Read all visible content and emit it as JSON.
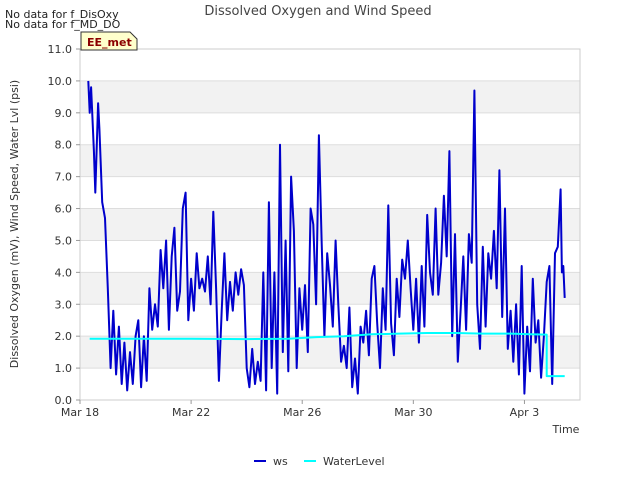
{
  "notices": [
    "No data for f_DisOxy",
    "No data for f_MD_DO"
  ],
  "station_badge": "EE_met",
  "chart_data": {
    "type": "line",
    "title": "Dissolved Oxygen and Wind Speed",
    "xlabel": "Time",
    "ylabel": "Dissolved Oxygen (mV), Wind Speed, Water Lvl (psi)",
    "xlim": [
      0,
      18
    ],
    "ylim": [
      0.0,
      11.0
    ],
    "x_tick_values": [
      0,
      4,
      8,
      12,
      16
    ],
    "x_tick_labels": [
      "Mar 18",
      "Mar 22",
      "Mar 26",
      "Mar 30",
      "Apr 3"
    ],
    "y_ticks": [
      0.0,
      1.0,
      2.0,
      3.0,
      4.0,
      5.0,
      6.0,
      7.0,
      8.0,
      9.0,
      10.0,
      11.0
    ],
    "y_tick_labels": [
      "0.0",
      "1.0",
      "2.0",
      "3.0",
      "4.0",
      "5.0",
      "6.0",
      "7.0",
      "8.0",
      "9.0",
      "10.0",
      "11.0"
    ],
    "x_unit": "days since Mar 18",
    "series": [
      {
        "name": "ws",
        "color": "#0000cc",
        "points": [
          [
            0.3,
            10.0
          ],
          [
            0.35,
            9.0
          ],
          [
            0.4,
            9.8
          ],
          [
            0.45,
            8.8
          ],
          [
            0.5,
            7.8
          ],
          [
            0.55,
            6.5
          ],
          [
            0.65,
            9.3
          ],
          [
            0.7,
            8.5
          ],
          [
            0.8,
            6.2
          ],
          [
            0.9,
            5.7
          ],
          [
            1.0,
            3.5
          ],
          [
            1.1,
            1.0
          ],
          [
            1.2,
            2.8
          ],
          [
            1.3,
            0.8
          ],
          [
            1.4,
            2.3
          ],
          [
            1.5,
            0.5
          ],
          [
            1.6,
            1.8
          ],
          [
            1.7,
            0.3
          ],
          [
            1.8,
            1.5
          ],
          [
            1.9,
            0.5
          ],
          [
            2.0,
            2.0
          ],
          [
            2.1,
            2.5
          ],
          [
            2.2,
            0.4
          ],
          [
            2.3,
            2.0
          ],
          [
            2.4,
            0.6
          ],
          [
            2.5,
            3.5
          ],
          [
            2.6,
            2.2
          ],
          [
            2.7,
            3.0
          ],
          [
            2.8,
            2.3
          ],
          [
            2.9,
            4.7
          ],
          [
            3.0,
            3.5
          ],
          [
            3.1,
            5.0
          ],
          [
            3.2,
            2.2
          ],
          [
            3.3,
            4.5
          ],
          [
            3.4,
            5.4
          ],
          [
            3.5,
            2.8
          ],
          [
            3.6,
            3.4
          ],
          [
            3.7,
            6.0
          ],
          [
            3.8,
            6.5
          ],
          [
            3.9,
            2.5
          ],
          [
            4.0,
            3.8
          ],
          [
            4.1,
            2.8
          ],
          [
            4.2,
            4.6
          ],
          [
            4.3,
            3.5
          ],
          [
            4.4,
            3.8
          ],
          [
            4.5,
            3.4
          ],
          [
            4.6,
            4.5
          ],
          [
            4.7,
            3.0
          ],
          [
            4.8,
            5.9
          ],
          [
            4.9,
            3.5
          ],
          [
            5.0,
            0.6
          ],
          [
            5.1,
            2.8
          ],
          [
            5.2,
            4.6
          ],
          [
            5.3,
            2.5
          ],
          [
            5.4,
            3.7
          ],
          [
            5.5,
            2.8
          ],
          [
            5.6,
            4.0
          ],
          [
            5.7,
            3.3
          ],
          [
            5.8,
            4.1
          ],
          [
            5.9,
            3.6
          ],
          [
            6.0,
            1.0
          ],
          [
            6.1,
            0.4
          ],
          [
            6.2,
            1.6
          ],
          [
            6.3,
            0.5
          ],
          [
            6.4,
            1.2
          ],
          [
            6.5,
            0.6
          ],
          [
            6.6,
            4.0
          ],
          [
            6.7,
            0.3
          ],
          [
            6.8,
            6.2
          ],
          [
            6.9,
            1.0
          ],
          [
            7.0,
            4.0
          ],
          [
            7.1,
            0.2
          ],
          [
            7.2,
            8.0
          ],
          [
            7.3,
            1.5
          ],
          [
            7.4,
            5.0
          ],
          [
            7.5,
            0.9
          ],
          [
            7.6,
            7.0
          ],
          [
            7.7,
            5.3
          ],
          [
            7.8,
            1.0
          ],
          [
            7.9,
            3.5
          ],
          [
            8.0,
            2.2
          ],
          [
            8.1,
            3.6
          ],
          [
            8.2,
            1.5
          ],
          [
            8.3,
            6.0
          ],
          [
            8.4,
            5.5
          ],
          [
            8.5,
            3.0
          ],
          [
            8.6,
            8.3
          ],
          [
            8.7,
            4.9
          ],
          [
            8.8,
            2.0
          ],
          [
            8.9,
            4.6
          ],
          [
            9.0,
            3.6
          ],
          [
            9.1,
            2.3
          ],
          [
            9.2,
            5.0
          ],
          [
            9.3,
            3.0
          ],
          [
            9.4,
            1.2
          ],
          [
            9.5,
            1.7
          ],
          [
            9.6,
            1.0
          ],
          [
            9.7,
            2.9
          ],
          [
            9.8,
            0.4
          ],
          [
            9.9,
            1.3
          ],
          [
            10.0,
            0.2
          ],
          [
            10.1,
            2.3
          ],
          [
            10.2,
            1.8
          ],
          [
            10.3,
            2.8
          ],
          [
            10.4,
            1.4
          ],
          [
            10.5,
            3.8
          ],
          [
            10.6,
            4.2
          ],
          [
            10.7,
            2.4
          ],
          [
            10.8,
            1.0
          ],
          [
            10.9,
            3.5
          ],
          [
            11.0,
            2.2
          ],
          [
            11.1,
            6.1
          ],
          [
            11.2,
            2.4
          ],
          [
            11.3,
            1.4
          ],
          [
            11.4,
            3.8
          ],
          [
            11.5,
            2.6
          ],
          [
            11.6,
            4.4
          ],
          [
            11.7,
            3.8
          ],
          [
            11.8,
            5.0
          ],
          [
            11.9,
            3.5
          ],
          [
            12.0,
            2.2
          ],
          [
            12.1,
            3.8
          ],
          [
            12.2,
            1.8
          ],
          [
            12.3,
            4.2
          ],
          [
            12.4,
            2.3
          ],
          [
            12.5,
            5.8
          ],
          [
            12.6,
            4.0
          ],
          [
            12.7,
            3.3
          ],
          [
            12.8,
            6.0
          ],
          [
            12.9,
            3.3
          ],
          [
            13.0,
            4.3
          ],
          [
            13.1,
            6.4
          ],
          [
            13.2,
            4.5
          ],
          [
            13.3,
            7.8
          ],
          [
            13.4,
            2.0
          ],
          [
            13.5,
            5.2
          ],
          [
            13.6,
            1.2
          ],
          [
            13.7,
            2.8
          ],
          [
            13.8,
            4.5
          ],
          [
            13.9,
            2.2
          ],
          [
            14.0,
            5.2
          ],
          [
            14.1,
            4.3
          ],
          [
            14.2,
            9.7
          ],
          [
            14.3,
            3.0
          ],
          [
            14.4,
            1.6
          ],
          [
            14.5,
            4.8
          ],
          [
            14.6,
            2.3
          ],
          [
            14.7,
            4.6
          ],
          [
            14.8,
            3.8
          ],
          [
            14.9,
            5.3
          ],
          [
            15.0,
            3.5
          ],
          [
            15.1,
            7.2
          ],
          [
            15.2,
            2.6
          ],
          [
            15.3,
            6.0
          ],
          [
            15.4,
            1.6
          ],
          [
            15.5,
            2.8
          ],
          [
            15.6,
            1.2
          ],
          [
            15.7,
            3.0
          ],
          [
            15.8,
            0.8
          ],
          [
            15.9,
            4.2
          ],
          [
            16.0,
            0.2
          ],
          [
            16.1,
            2.3
          ],
          [
            16.2,
            0.9
          ],
          [
            16.3,
            3.8
          ],
          [
            16.4,
            1.8
          ],
          [
            16.5,
            2.5
          ],
          [
            16.6,
            0.7
          ],
          [
            16.7,
            2.0
          ],
          [
            16.8,
            3.7
          ],
          [
            16.9,
            4.2
          ],
          [
            17.0,
            0.5
          ],
          [
            17.1,
            4.6
          ],
          [
            17.2,
            4.8
          ],
          [
            17.3,
            6.6
          ],
          [
            17.35,
            4.0
          ],
          [
            17.4,
            4.2
          ],
          [
            17.45,
            3.2
          ]
        ]
      },
      {
        "name": "WaterLevel",
        "color": "#00ffff",
        "points": [
          [
            0.35,
            1.92
          ],
          [
            2.0,
            1.92
          ],
          [
            4.0,
            1.92
          ],
          [
            6.0,
            1.91
          ],
          [
            7.5,
            1.92
          ],
          [
            8.5,
            1.97
          ],
          [
            9.5,
            2.0
          ],
          [
            10.5,
            2.06
          ],
          [
            11.5,
            2.08
          ],
          [
            12.5,
            2.1
          ],
          [
            13.5,
            2.1
          ],
          [
            14.5,
            2.08
          ],
          [
            15.5,
            2.08
          ],
          [
            16.2,
            2.06
          ],
          [
            16.8,
            2.05
          ],
          [
            16.8,
            0.75
          ],
          [
            17.45,
            0.75
          ]
        ]
      }
    ]
  }
}
